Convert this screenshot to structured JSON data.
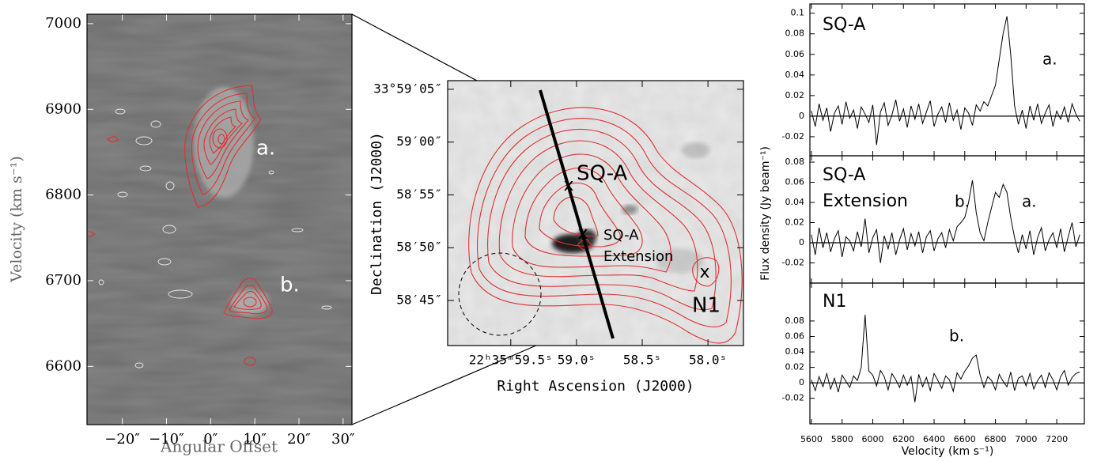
{
  "chart_data": [
    {
      "type": "pv-image",
      "xlabel": "Angular Offset",
      "ylabel": "Velocity (km s⁻¹)",
      "xlim": [
        -28,
        32
      ],
      "ylim": [
        6532,
        7011
      ],
      "xticks": [
        {
          "value": -20,
          "label": "−20″"
        },
        {
          "value": -10,
          "label": "−10″"
        },
        {
          "value": 0,
          "label": "0″"
        },
        {
          "value": 10,
          "label": "10″"
        },
        {
          "value": 20,
          "label": "20″"
        },
        {
          "value": 30,
          "label": "30″"
        }
      ],
      "yticks": [
        6600,
        6700,
        6800,
        6900,
        7000
      ],
      "annotations": [
        "a.",
        "b."
      ]
    },
    {
      "type": "sky-image",
      "xlabel": "Right Ascension (J2000)",
      "ylabel": "Declination (J2000)",
      "xlim": [
        59.98,
        57.73
      ],
      "ylim": [
        40.73,
        65.82
      ],
      "xticks": [
        {
          "value": 59.5,
          "label": "22ʰ35ᵐ59.5ˢ"
        },
        {
          "value": 59.0,
          "label": "59.0ˢ"
        },
        {
          "value": 58.5,
          "label": "58.5ˢ"
        },
        {
          "value": 58.0,
          "label": "58.0ˢ"
        }
      ],
      "yticks": [
        {
          "value": 65,
          "label": "33°59′05″"
        },
        {
          "value": 60,
          "label": "59′00″"
        },
        {
          "value": 55,
          "label": "58′55″"
        },
        {
          "value": 50,
          "label": "58′50″"
        },
        {
          "value": 45,
          "label": "58′45″"
        }
      ],
      "annotations": [
        "SQ-A",
        "SQ-A",
        "Extension",
        "N1"
      ],
      "markers": [
        "x",
        "x",
        "x"
      ]
    },
    {
      "type": "line",
      "label_lines": [
        "SQ-A"
      ],
      "annotations": [
        "a."
      ],
      "xlim": [
        5590,
        7380
      ],
      "ylim": [
        -0.0385,
        0.109
      ],
      "xticks": [
        5600,
        5800,
        6000,
        6200,
        6400,
        6600,
        6800,
        7000,
        7200
      ],
      "yticks": [
        0.1,
        0.08,
        0.06,
        0.04,
        0.02,
        0,
        -0.02
      ],
      "color": "#000000",
      "x": [
        5600,
        5625,
        5650,
        5675,
        5700,
        5725,
        5750,
        5775,
        5800,
        5825,
        5850,
        5875,
        5900,
        5925,
        5950,
        5975,
        6000,
        6025,
        6050,
        6075,
        6100,
        6125,
        6150,
        6175,
        6200,
        6225,
        6250,
        6275,
        6300,
        6325,
        6350,
        6375,
        6400,
        6425,
        6450,
        6475,
        6500,
        6525,
        6550,
        6575,
        6600,
        6625,
        6650,
        6675,
        6700,
        6725,
        6750,
        6775,
        6800,
        6825,
        6850,
        6875,
        6900,
        6925,
        6950,
        6975,
        7000,
        7025,
        7050,
        7075,
        7100,
        7125,
        7150,
        7175,
        7200,
        7225,
        7250,
        7275,
        7300,
        7325,
        7350
      ],
      "values": [
        0.005,
        -0.01,
        0.012,
        -0.004,
        0.008,
        -0.015,
        0.003,
        0.01,
        -0.008,
        0.014,
        -0.002,
        0.006,
        -0.012,
        0.009,
        0.002,
        -0.006,
        0.011,
        -0.028,
        0.004,
        0.013,
        -0.009,
        0.001,
        0.016,
        -0.005,
        0.007,
        -0.011,
        0.01,
        -0.003,
        0.012,
        -0.007,
        0.004,
        0.015,
        -0.01,
        0.002,
        0.009,
        -0.006,
        0.013,
        -0.004,
        0.006,
        -0.013,
        0.008,
        0.003,
        -0.009,
        0.011,
        0.005,
        0.014,
        0.01,
        0.02,
        0.03,
        0.055,
        0.08,
        0.097,
        0.06,
        0.01,
        -0.008,
        0.006,
        -0.012,
        0.01,
        -0.004,
        0.012,
        -0.007,
        0.003,
        0.011,
        -0.01,
        0.005,
        -0.003,
        0.009,
        -0.006,
        0.012,
        0.002,
        -0.005
      ]
    },
    {
      "type": "line",
      "label_lines": [
        "SQ-A",
        "Extension"
      ],
      "annotations": [
        "b.",
        "a."
      ],
      "ylabel": "Flux density (Jy beam⁻¹)",
      "xlim": [
        5590,
        7380
      ],
      "ylim": [
        -0.04,
        0.0863
      ],
      "xticks": [
        5600,
        5800,
        6000,
        6200,
        6400,
        6600,
        6800,
        7000,
        7200
      ],
      "yticks": [
        0.08,
        0.06,
        0.04,
        0.02,
        0,
        -0.02
      ],
      "color": "#000000",
      "x": [
        5600,
        5625,
        5650,
        5675,
        5700,
        5725,
        5750,
        5775,
        5800,
        5825,
        5850,
        5875,
        5900,
        5925,
        5950,
        5975,
        6000,
        6025,
        6050,
        6075,
        6100,
        6125,
        6150,
        6175,
        6200,
        6225,
        6250,
        6275,
        6300,
        6325,
        6350,
        6375,
        6400,
        6425,
        6450,
        6475,
        6500,
        6525,
        6550,
        6575,
        6600,
        6625,
        6650,
        6675,
        6700,
        6725,
        6750,
        6775,
        6800,
        6825,
        6850,
        6875,
        6900,
        6925,
        6950,
        6975,
        7000,
        7025,
        7050,
        7075,
        7100,
        7125,
        7150,
        7175,
        7200,
        7225,
        7250,
        7275,
        7300,
        7325,
        7350
      ],
      "values": [
        0.008,
        -0.012,
        0.015,
        -0.005,
        0.01,
        -0.009,
        0.004,
        0.012,
        -0.014,
        0.006,
        0.002,
        -0.008,
        0.011,
        -0.004,
        0.024,
        -0.01,
        0.005,
        0.013,
        -0.02,
        0.007,
        -0.006,
        0.01,
        -0.012,
        0.003,
        0.014,
        -0.007,
        0.009,
        -0.003,
        0.011,
        -0.01,
        0.006,
        0.012,
        -0.008,
        0.004,
        0.01,
        -0.005,
        0.013,
        0.002,
        0.016,
        0.02,
        0.025,
        0.04,
        0.062,
        0.03,
        0.01,
        0.002,
        0.02,
        0.035,
        0.05,
        0.045,
        0.058,
        0.05,
        0.025,
        0.005,
        -0.01,
        0.008,
        -0.006,
        0.012,
        -0.012,
        0.005,
        0.015,
        -0.008,
        0.003,
        0.01,
        -0.005,
        0.014,
        -0.009,
        0.006,
        0.02,
        -0.004,
        0.008
      ]
    },
    {
      "type": "line",
      "label_lines": [
        "N1"
      ],
      "annotations": [
        "b."
      ],
      "xlabel": "Velocity (km s⁻¹)",
      "xlim": [
        5590,
        7380
      ],
      "ylim": [
        -0.053,
        0.129
      ],
      "xticks": [
        5600,
        5800,
        6000,
        6200,
        6400,
        6600,
        6800,
        7000,
        7200
      ],
      "yticks": [
        0.08,
        0.06,
        0.04,
        0.02,
        0,
        -0.02
      ],
      "color": "#000000",
      "x": [
        5600,
        5625,
        5650,
        5675,
        5700,
        5725,
        5750,
        5775,
        5800,
        5825,
        5850,
        5875,
        5900,
        5925,
        5950,
        5975,
        6000,
        6025,
        6050,
        6075,
        6100,
        6125,
        6150,
        6175,
        6200,
        6225,
        6250,
        6275,
        6300,
        6325,
        6350,
        6375,
        6400,
        6425,
        6450,
        6475,
        6500,
        6525,
        6550,
        6575,
        6600,
        6625,
        6650,
        6675,
        6700,
        6725,
        6750,
        6775,
        6800,
        6825,
        6850,
        6875,
        6900,
        6925,
        6950,
        6975,
        7000,
        7025,
        7050,
        7075,
        7100,
        7125,
        7150,
        7175,
        7200,
        7225,
        7250,
        7275,
        7300,
        7325,
        7350
      ],
      "values": [
        0.004,
        -0.01,
        0.008,
        -0.005,
        0.012,
        -0.008,
        0.006,
        -0.012,
        0.01,
        0.002,
        -0.006,
        0.009,
        0.003,
        0.02,
        0.088,
        0.015,
        0.01,
        -0.004,
        0.016,
        0.008,
        -0.009,
        0.012,
        0.004,
        -0.006,
        0.01,
        -0.003,
        0.008,
        -0.025,
        0.011,
        -0.005,
        0.007,
        -0.01,
        0.012,
        0.003,
        -0.007,
        0.009,
        0.004,
        -0.011,
        0.013,
        0.005,
        0.015,
        0.022,
        0.032,
        0.036,
        0.01,
        -0.006,
        0.008,
        0.003,
        -0.009,
        0.011,
        0.002,
        -0.005,
        0.014,
        -0.01,
        0.006,
        0.009,
        -0.004,
        0.012,
        -0.008,
        0.003,
        0.01,
        -0.006,
        0.013,
        0.004,
        -0.009,
        0.008,
        0.016,
        -0.003,
        0.007,
        0.012,
        0.014
      ]
    }
  ]
}
